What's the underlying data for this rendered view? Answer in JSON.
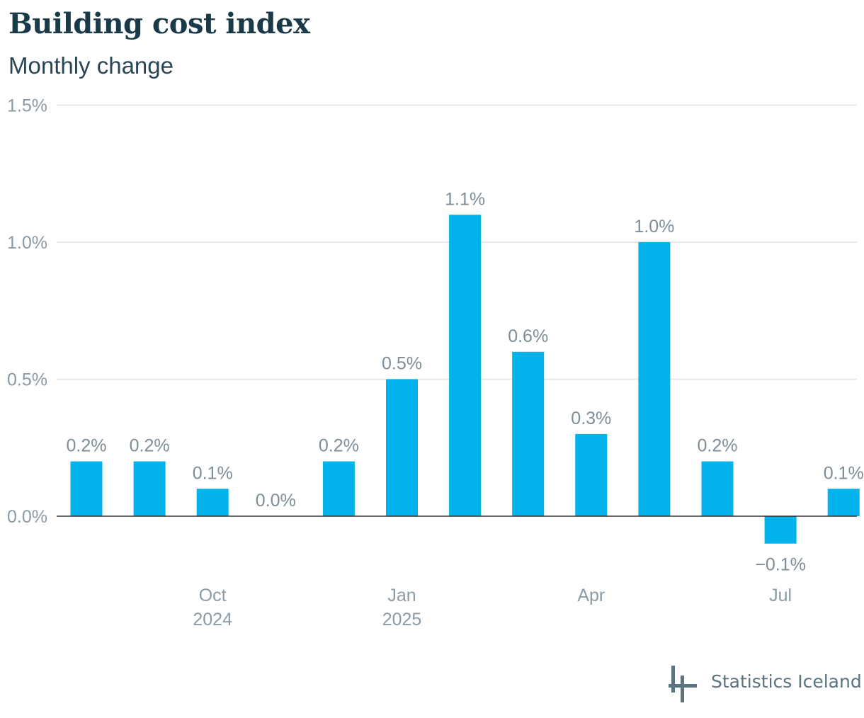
{
  "title": "Building cost index",
  "subtitle": "Monthly change",
  "brand": "Statistics Iceland",
  "colors": {
    "bar": "#02b2eb",
    "title": "#1a3a4a",
    "axis_text": "#8a9ba5",
    "logo": "#5a7480"
  },
  "chart_data": {
    "type": "bar",
    "categories": [
      "2024-08",
      "2024-09",
      "2024-10",
      "2024-11",
      "2024-12",
      "2025-01",
      "2025-02",
      "2025-03",
      "2025-04",
      "2025-05",
      "2025-06",
      "2025-07",
      "2025-08"
    ],
    "values": [
      0.2,
      0.2,
      0.1,
      0.0,
      0.2,
      0.5,
      1.1,
      0.6,
      0.3,
      1.0,
      0.2,
      -0.1,
      0.1
    ],
    "data_labels": [
      "0.2%",
      "0.2%",
      "0.1%",
      "0.0%",
      "0.2%",
      "0.5%",
      "1.1%",
      "0.6%",
      "0.3%",
      "1.0%",
      "0.2%",
      "−0.1%",
      "0.1%"
    ],
    "y_ticks": [
      {
        "value": 0.0,
        "label": "0.0%"
      },
      {
        "value": 0.5,
        "label": "0.5%"
      },
      {
        "value": 1.0,
        "label": "1.0%"
      },
      {
        "value": 1.5,
        "label": "1.5%"
      }
    ],
    "x_ticks": [
      {
        "category": "2024-10",
        "line1": "Oct",
        "line2": "2024"
      },
      {
        "category": "2025-01",
        "line1": "Jan",
        "line2": "2025"
      },
      {
        "category": "2025-04",
        "line1": "Apr",
        "line2": ""
      },
      {
        "category": "2025-07",
        "line1": "Jul",
        "line2": ""
      }
    ],
    "ylim": [
      -0.25,
      1.5
    ],
    "grid": true,
    "legend": "none"
  }
}
